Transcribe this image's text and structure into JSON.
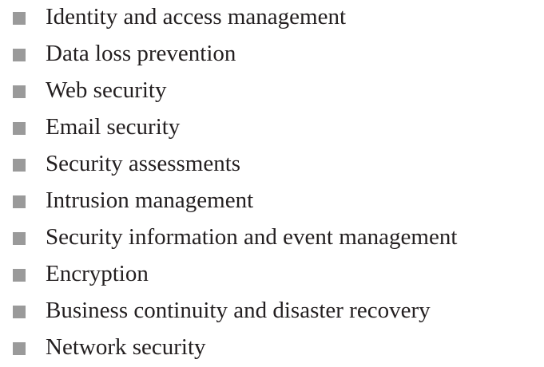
{
  "bullet_color": "#9a9a9a",
  "text_color": "#231f20",
  "items": [
    {
      "label": "Identity and access management"
    },
    {
      "label": "Data loss prevention"
    },
    {
      "label": "Web security"
    },
    {
      "label": "Email security"
    },
    {
      "label": "Security assessments"
    },
    {
      "label": "Intrusion management"
    },
    {
      "label": "Security information and event management"
    },
    {
      "label": "Encryption"
    },
    {
      "label": "Business continuity and disaster recovery"
    },
    {
      "label": "Network security"
    }
  ]
}
